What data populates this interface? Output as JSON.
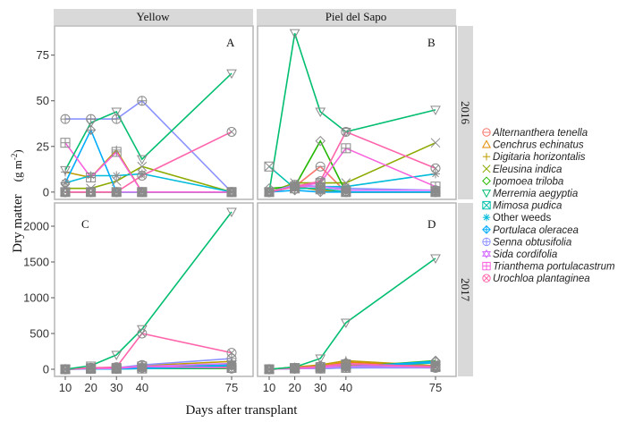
{
  "chart_data": {
    "type": "line",
    "xlabel": "Days after transplant",
    "ylabel": "Dry matter",
    "ylabel_unit": "(g m",
    "ylabel_unit_sup": "-2",
    "ylabel_unit_close": ")",
    "x": [
      10,
      20,
      30,
      40,
      75
    ],
    "x_ticks": [
      "10",
      "20",
      "30",
      "40",
      "75"
    ],
    "columns": [
      "Yellow",
      "Piel del Sapo"
    ],
    "rows": [
      "2016",
      "2017"
    ],
    "legend_position": "right",
    "grid": false,
    "species": [
      {
        "name": "Alternanthera tenella",
        "color": "#F8766D",
        "shape": "circle-minus",
        "italic": true
      },
      {
        "name": "Cenchrus echinatus",
        "color": "#E18A00",
        "shape": "triangle",
        "italic": true
      },
      {
        "name": "Digitaria horizontalis",
        "color": "#BE9C00",
        "shape": "plus",
        "italic": true
      },
      {
        "name": "Eleusina indica",
        "color": "#8CAB00",
        "shape": "cross",
        "italic": true
      },
      {
        "name": "Ipomoea triloba",
        "color": "#24B700",
        "shape": "diamond",
        "italic": true
      },
      {
        "name": "Merremia aegyptia",
        "color": "#00BE70",
        "shape": "triangle-down",
        "italic": true
      },
      {
        "name": "Mimosa pudica",
        "color": "#00C1AB",
        "shape": "square-cross",
        "italic": true
      },
      {
        "name": "Other weeds",
        "color": "#00BBDA",
        "shape": "asterisk",
        "italic": false
      },
      {
        "name": "Portulaca oleracea",
        "color": "#00ACFC",
        "shape": "diamond-plus",
        "italic": true
      },
      {
        "name": "Senna obtusifolia",
        "color": "#8B93FF",
        "shape": "circle-plus",
        "italic": true
      },
      {
        "name": "Sida cordifolia",
        "color": "#D575FE",
        "shape": "star-david",
        "italic": true
      },
      {
        "name": "Trianthema portulacastrum",
        "color": "#F962DD",
        "shape": "square-plus",
        "italic": true
      },
      {
        "name": "Urochloa plantaginea",
        "color": "#FF65AC",
        "shape": "circle-cross",
        "italic": true
      }
    ],
    "panels": [
      {
        "label": "A",
        "column": "Yellow",
        "row": "2016",
        "ylim": [
          -4,
          91
        ],
        "y_ticks": [
          0,
          25,
          50,
          75
        ],
        "series": {
          "Alternanthera tenella": [
            0,
            0,
            0,
            0,
            0
          ],
          "Cenchrus echinatus": [
            0,
            0,
            0,
            0,
            0
          ],
          "Digitaria horizontalis": [
            11,
            8,
            23,
            0,
            0
          ],
          "Eleusina indica": [
            2,
            2,
            6,
            14,
            0
          ],
          "Ipomoea triloba": [
            0,
            0,
            0,
            0,
            0
          ],
          "Merremia aegyptia": [
            12,
            38,
            44,
            18,
            65
          ],
          "Mimosa pudica": [
            0,
            0,
            0,
            0,
            0
          ],
          "Other weeds": [
            5,
            9,
            9,
            10,
            0
          ],
          "Portulaca oleracea": [
            5,
            34,
            0,
            0,
            0
          ],
          "Senna obtusifolia": [
            40,
            40,
            40,
            50,
            0
          ],
          "Sida cordifolia": [
            0,
            0,
            0,
            0,
            0
          ],
          "Trianthema portulacastrum": [
            27,
            8,
            22,
            0,
            0
          ],
          "Urochloa plantaginea": [
            0,
            0,
            0,
            9,
            33
          ]
        }
      },
      {
        "label": "B",
        "column": "Piel del Sapo",
        "row": "2016",
        "ylim": [
          -4,
          91
        ],
        "y_ticks": [
          0,
          25,
          50,
          75
        ],
        "series": {
          "Alternanthera tenella": [
            0,
            3,
            14,
            0,
            0
          ],
          "Cenchrus echinatus": [
            0,
            3,
            1,
            0,
            0
          ],
          "Digitaria horizontalis": [
            0,
            3,
            1,
            0,
            0
          ],
          "Eleusina indica": [
            0,
            5,
            5,
            5,
            27
          ],
          "Ipomoea triloba": [
            2,
            3,
            28,
            0,
            0
          ],
          "Merremia aegyptia": [
            0,
            87,
            44,
            33,
            45
          ],
          "Mimosa pudica": [
            14,
            2,
            2,
            0,
            0
          ],
          "Other weeds": [
            0,
            3,
            3,
            3,
            10
          ],
          "Portulaca oleracea": [
            0,
            1,
            0,
            0,
            0
          ],
          "Senna obtusifolia": [
            0,
            4,
            3,
            2,
            1
          ],
          "Sida cordifolia": [
            0,
            3,
            3,
            1,
            1
          ],
          "Trianthema portulacastrum": [
            0,
            3,
            5,
            24,
            3
          ],
          "Urochloa plantaginea": [
            0,
            3,
            6,
            33,
            13
          ]
        }
      },
      {
        "label": "C",
        "column": "Yellow",
        "row": "2017",
        "ylim": [
          -100,
          2325
        ],
        "y_ticks": [
          0,
          500,
          1000,
          1500,
          2000
        ],
        "series": {
          "Alternanthera tenella": [
            0,
            10,
            10,
            20,
            10
          ],
          "Cenchrus echinatus": [
            0,
            10,
            10,
            30,
            60
          ],
          "Digitaria horizontalis": [
            0,
            20,
            20,
            50,
            110
          ],
          "Eleusina indica": [
            0,
            10,
            10,
            30,
            40
          ],
          "Ipomoea triloba": [
            0,
            5,
            5,
            10,
            10
          ],
          "Merremia aegyptia": [
            0,
            50,
            200,
            560,
            2200
          ],
          "Mimosa pudica": [
            0,
            5,
            5,
            10,
            20
          ],
          "Other weeds": [
            0,
            10,
            10,
            20,
            60
          ],
          "Portulaca oleracea": [
            0,
            5,
            5,
            10,
            50
          ],
          "Senna obtusifolia": [
            0,
            20,
            20,
            60,
            150
          ],
          "Sida cordifolia": [
            0,
            10,
            10,
            40,
            80
          ],
          "Trianthema portulacastrum": [
            0,
            15,
            20,
            40,
            20
          ],
          "Urochloa plantaginea": [
            0,
            20,
            30,
            500,
            230
          ]
        }
      },
      {
        "label": "D",
        "column": "Piel del Sapo",
        "row": "2017",
        "ylim": [
          -100,
          2325
        ],
        "y_ticks": [
          0,
          500,
          1000,
          1500,
          2000
        ],
        "series": {
          "Alternanthera tenella": [
            0,
            10,
            20,
            40,
            20
          ],
          "Cenchrus echinatus": [
            0,
            20,
            40,
            100,
            40
          ],
          "Digitaria horizontalis": [
            0,
            30,
            60,
            120,
            50
          ],
          "Eleusina indica": [
            0,
            20,
            30,
            60,
            40
          ],
          "Ipomoea triloba": [
            0,
            10,
            20,
            30,
            120
          ],
          "Merremia aegyptia": [
            0,
            30,
            150,
            650,
            1550
          ],
          "Mimosa pudica": [
            0,
            10,
            10,
            20,
            30
          ],
          "Other weeds": [
            0,
            20,
            20,
            30,
            90
          ],
          "Portulaca oleracea": [
            0,
            20,
            30,
            30,
            110
          ],
          "Senna obtusifolia": [
            0,
            10,
            10,
            20,
            20
          ],
          "Sida cordifolia": [
            0,
            10,
            20,
            40,
            30
          ],
          "Trianthema portulacastrum": [
            0,
            15,
            30,
            70,
            40
          ],
          "Urochloa plantaginea": [
            0,
            20,
            40,
            80,
            30
          ]
        }
      }
    ]
  }
}
